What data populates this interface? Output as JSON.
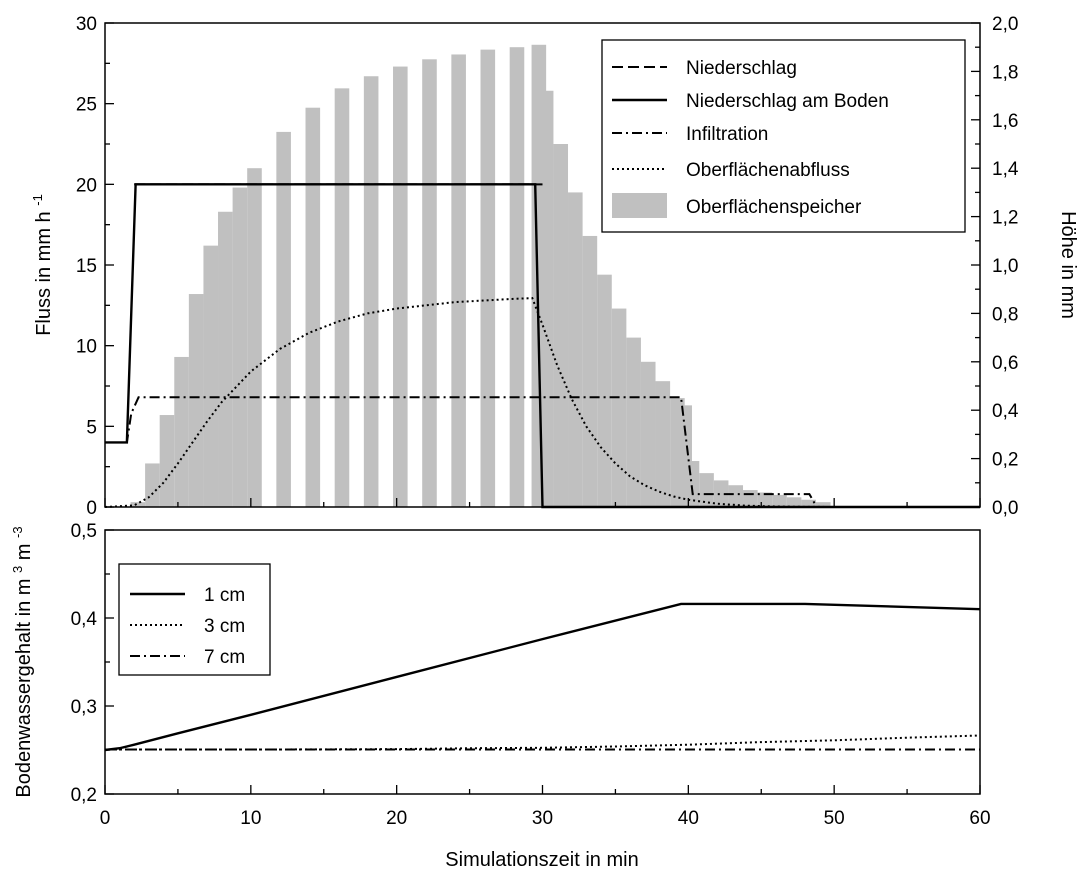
{
  "chart_data": [
    {
      "type": "line",
      "xlim": [
        0,
        60
      ],
      "ylim": [
        0,
        30
      ],
      "y2lim": [
        0,
        2.0
      ],
      "x_ticks": [
        "0",
        "10",
        "20",
        "30",
        "40",
        "50",
        "60"
      ],
      "y_ticks": [
        "0",
        "5",
        "10",
        "15",
        "20",
        "25",
        "30"
      ],
      "y2_ticks": [
        "0,0",
        "0,2",
        "0,4",
        "0,6",
        "0,8",
        "1,0",
        "1,2",
        "1,4",
        "1,6",
        "1,8",
        "2,0"
      ],
      "ylabel_main": "Fluss in mm h",
      "ylabel_sup": "-1",
      "y2label": "Höhe in mm",
      "legend_position": "top-right",
      "legend": [
        "Niederschlag",
        "Niederschlag am Boden",
        "Infiltration",
        "Oberflächenabfluss",
        "Oberflächenspeicher"
      ],
      "series": [
        {
          "name": "Niederschlag",
          "style": "dashed",
          "axis": "left",
          "x": [
            0,
            1.8,
            2.0,
            60
          ],
          "y": [
            20,
            20,
            20,
            20
          ],
          "clip_x": [
            2,
            30
          ]
        },
        {
          "name": "Niederschlag am Boden",
          "style": "solid",
          "axis": "left",
          "x": [
            0,
            1.5,
            2.1,
            29.5,
            30.0,
            60
          ],
          "y": [
            4,
            4,
            20,
            20,
            0,
            0
          ]
        },
        {
          "name": "Infiltration",
          "style": "dashdot",
          "axis": "left",
          "x": [
            0,
            1.5,
            1.8,
            2.3,
            39.5,
            40.3,
            48.3,
            48.8,
            60
          ],
          "y": [
            4,
            4,
            5.8,
            6.8,
            6.8,
            0.8,
            0.8,
            0,
            0
          ]
        },
        {
          "name": "Oberflächenabfluss",
          "style": "dotted",
          "axis": "left",
          "x": [
            0,
            2,
            3,
            4,
            5,
            6,
            7,
            8,
            10,
            12,
            14,
            16,
            18,
            20,
            22,
            24,
            26,
            28,
            29.3,
            30,
            31,
            32,
            33,
            34,
            35,
            36,
            37,
            38,
            39,
            40,
            42,
            44,
            46,
            48,
            50,
            60
          ],
          "y": [
            0,
            0.1,
            0.6,
            1.5,
            2.7,
            4.0,
            5.3,
            6.5,
            8.4,
            9.8,
            10.8,
            11.5,
            12.0,
            12.3,
            12.5,
            12.7,
            12.8,
            12.9,
            12.95,
            11.3,
            8.8,
            6.7,
            5.0,
            3.7,
            2.7,
            1.9,
            1.35,
            0.95,
            0.65,
            0.45,
            0.2,
            0.08,
            0.03,
            0.01,
            0,
            0
          ]
        },
        {
          "name": "Oberflächenspeicher",
          "style": "bars",
          "axis": "right",
          "x": [
            2,
            3,
            4,
            5,
            6,
            7,
            8,
            9,
            10,
            12,
            14,
            16,
            18,
            20,
            22,
            24,
            26,
            28,
            29.5,
            30,
            31,
            32,
            33,
            34,
            35,
            36,
            37,
            38,
            39,
            39.5,
            40,
            41,
            42,
            43,
            44,
            45,
            46,
            47,
            48,
            49
          ],
          "y": [
            0.02,
            0.18,
            0.38,
            0.62,
            0.88,
            1.08,
            1.22,
            1.32,
            1.4,
            1.55,
            1.65,
            1.73,
            1.78,
            1.82,
            1.85,
            1.87,
            1.89,
            1.9,
            1.91,
            1.72,
            1.5,
            1.3,
            1.12,
            0.96,
            0.82,
            0.7,
            0.6,
            0.52,
            0.45,
            0.42,
            0.19,
            0.14,
            0.11,
            0.09,
            0.07,
            0.06,
            0.05,
            0.04,
            0.03,
            0.02
          ]
        }
      ]
    },
    {
      "type": "line",
      "xlim": [
        0,
        60
      ],
      "ylim": [
        0.2,
        0.5
      ],
      "x_ticks": [
        "0",
        "10",
        "20",
        "30",
        "40",
        "50",
        "60"
      ],
      "y_ticks": [
        "0,2",
        "0,3",
        "0,4",
        "0,5"
      ],
      "xlabel": "Simulationszeit in min",
      "ylabel_parts": [
        "Bodenwassergehalt in m",
        "3",
        " m",
        "-3"
      ],
      "legend_position": "top-left",
      "legend": [
        "1 cm",
        "3 cm",
        "7 cm"
      ],
      "series": [
        {
          "name": "1 cm",
          "style": "solid",
          "x": [
            0,
            1,
            2,
            5,
            10,
            20,
            30,
            39.5,
            45,
            48,
            60
          ],
          "y": [
            0.25,
            0.252,
            0.256,
            0.269,
            0.29,
            0.333,
            0.376,
            0.416,
            0.416,
            0.416,
            0.41
          ]
        },
        {
          "name": "3 cm",
          "style": "dotted",
          "x": [
            0,
            10,
            20,
            25,
            30,
            35,
            40,
            45,
            50,
            55,
            60
          ],
          "y": [
            0.2505,
            0.2505,
            0.251,
            0.252,
            0.2525,
            0.254,
            0.256,
            0.259,
            0.261,
            0.264,
            0.2665
          ]
        },
        {
          "name": "7 cm",
          "style": "dashdot",
          "x": [
            0,
            60
          ],
          "y": [
            0.2505,
            0.2505
          ]
        }
      ]
    }
  ]
}
